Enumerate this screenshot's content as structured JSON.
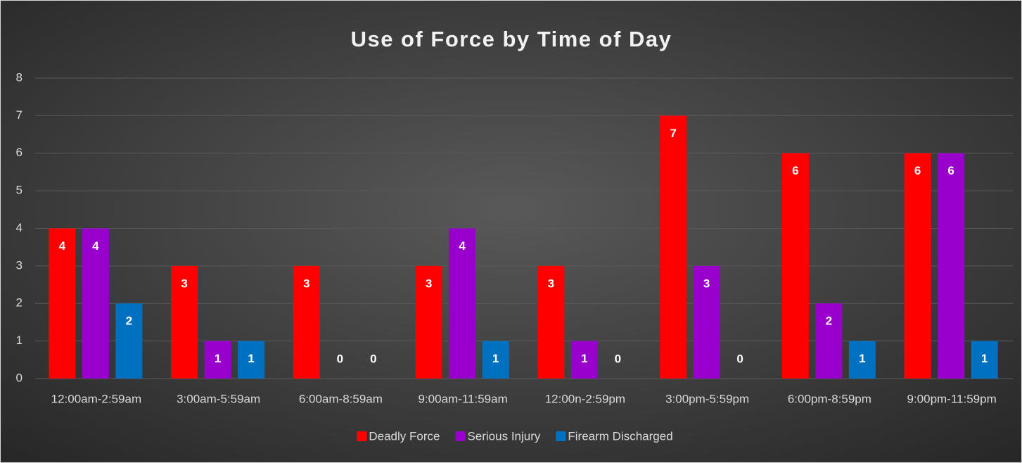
{
  "chart_data": {
    "type": "bar",
    "title": "Use of Force by Time of Day",
    "categories": [
      "12:00am-2:59am",
      "3:00am-5:59am",
      "6:00am-8:59am",
      "9:00am-11:59am",
      "12:00n-2:59pm",
      "3:00pm-5:59pm",
      "6:00pm-8:59pm",
      "9:00pm-11:59pm"
    ],
    "series": [
      {
        "name": "Deadly Force",
        "color": "#ff0000",
        "values": [
          4,
          3,
          3,
          3,
          3,
          7,
          6,
          6
        ]
      },
      {
        "name": "Serious Injury",
        "color": "#9900cc",
        "values": [
          4,
          1,
          0,
          4,
          1,
          3,
          2,
          6
        ]
      },
      {
        "name": "Firearm Discharged",
        "color": "#0070c0",
        "values": [
          2,
          1,
          0,
          1,
          0,
          0,
          1,
          1
        ]
      }
    ],
    "ylim": [
      0,
      8
    ],
    "yticks": [
      0,
      1,
      2,
      3,
      4,
      5,
      6,
      7,
      8
    ],
    "grid": true,
    "legend": "bottom"
  }
}
